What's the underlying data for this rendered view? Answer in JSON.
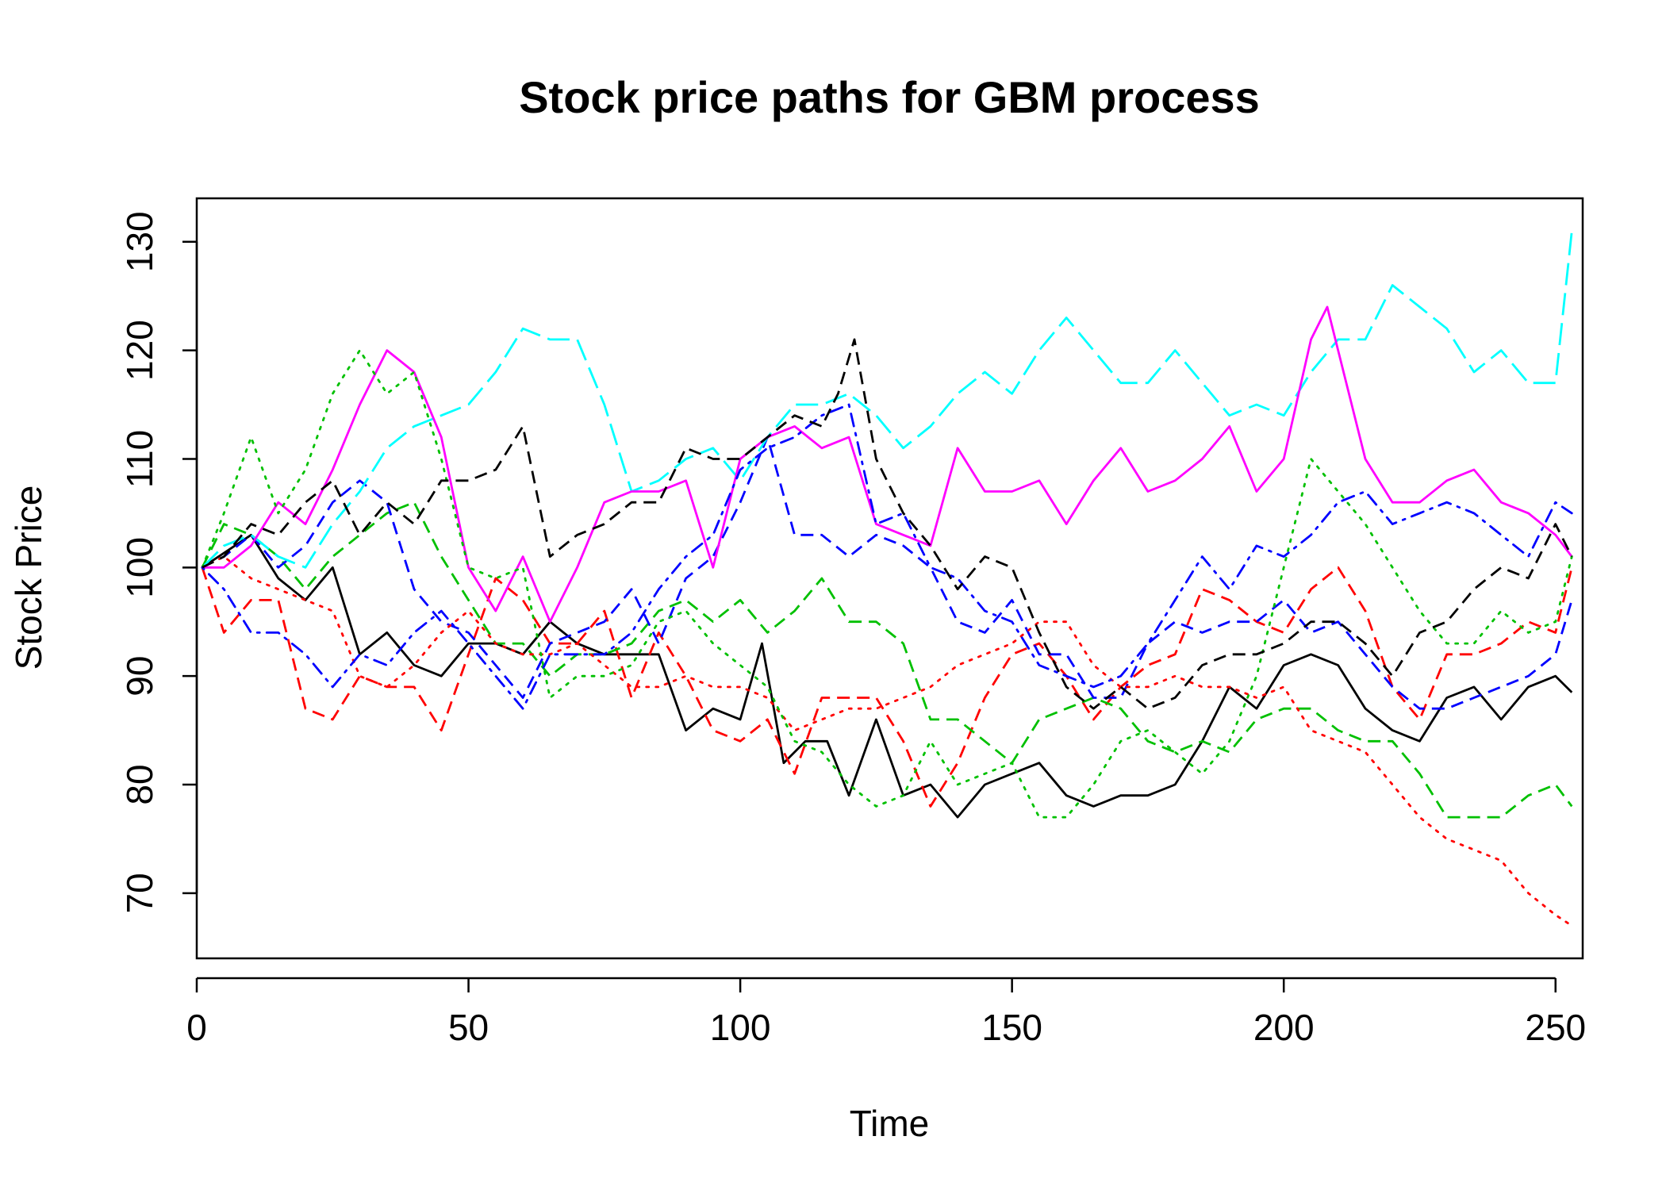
{
  "chart_data": {
    "type": "line",
    "title": "Stock price paths for GBM process",
    "xlabel": "Time",
    "ylabel": "Stock Price",
    "xlim": [
      0,
      255
    ],
    "ylim": [
      64,
      134
    ],
    "xticks": [
      0,
      50,
      100,
      150,
      200,
      250
    ],
    "yticks": [
      70,
      80,
      90,
      100,
      110,
      120,
      130
    ],
    "grid": false,
    "legend": "none",
    "series": [
      {
        "color": "#000000",
        "dash": "solid",
        "x": [
          1,
          10,
          15,
          20,
          25,
          30,
          35,
          40,
          45,
          50,
          55,
          60,
          65,
          70,
          75,
          80,
          85,
          90,
          95,
          100,
          104,
          108,
          112,
          116,
          120,
          125,
          130,
          135,
          140,
          145,
          150,
          155,
          160,
          165,
          170,
          175,
          180,
          185,
          190,
          195,
          200,
          205,
          210,
          215,
          220,
          225,
          230,
          235,
          240,
          245,
          250,
          253
        ],
        "values": [
          100,
          103,
          99,
          97,
          100,
          92,
          94,
          91,
          90,
          93,
          93,
          92,
          95,
          93,
          92,
          92,
          92,
          85,
          87,
          86,
          93,
          82,
          84,
          84,
          79,
          86,
          79,
          80,
          77,
          80,
          81,
          82,
          79,
          78,
          79,
          79,
          80,
          84,
          89,
          87,
          91,
          92,
          91,
          87,
          85,
          84,
          88,
          89,
          86,
          89,
          90,
          88.5
        ]
      },
      {
        "color": "#ff0000",
        "dash": "dashed",
        "x": [
          1,
          5,
          10,
          15,
          20,
          25,
          30,
          35,
          40,
          45,
          50,
          55,
          60,
          65,
          70,
          75,
          80,
          85,
          90,
          95,
          100,
          105,
          110,
          115,
          120,
          125,
          130,
          135,
          140,
          145,
          150,
          155,
          160,
          165,
          170,
          175,
          180,
          185,
          190,
          195,
          200,
          205,
          210,
          215,
          220,
          225,
          230,
          235,
          240,
          245,
          250,
          253
        ],
        "values": [
          100,
          94,
          97,
          97,
          87,
          86,
          90,
          89,
          89,
          85,
          92,
          99,
          97,
          93,
          93,
          96,
          88,
          94,
          90,
          85,
          84,
          86,
          81,
          88,
          88,
          88,
          84,
          78,
          82,
          88,
          92,
          93,
          90,
          86,
          89,
          91,
          92,
          98,
          97,
          95,
          94,
          98,
          100,
          96,
          89,
          86,
          92,
          92,
          93,
          95,
          94,
          100
        ]
      },
      {
        "color": "#00c000",
        "dash": "dashed",
        "x": [
          1,
          5,
          10,
          15,
          20,
          25,
          30,
          35,
          40,
          45,
          50,
          55,
          60,
          65,
          70,
          75,
          80,
          85,
          90,
          95,
          100,
          105,
          110,
          115,
          120,
          125,
          130,
          135,
          140,
          145,
          150,
          155,
          160,
          165,
          170,
          175,
          180,
          185,
          190,
          195,
          200,
          205,
          210,
          215,
          220,
          225,
          230,
          235,
          240,
          245,
          250,
          253
        ],
        "values": [
          100,
          104,
          103,
          101,
          98,
          101,
          103,
          105,
          106,
          101,
          97,
          93,
          93,
          90,
          92,
          92,
          93,
          96,
          97,
          95,
          97,
          94,
          96,
          99,
          95,
          95,
          93,
          86,
          86,
          84,
          82,
          86,
          87,
          88,
          87,
          84,
          83,
          84,
          83,
          86,
          87,
          87,
          85,
          84,
          84,
          81,
          77,
          77,
          77,
          79,
          80,
          78
        ]
      },
      {
        "color": "#0000ff",
        "dash": "dashed",
        "x": [
          1,
          5,
          10,
          15,
          20,
          25,
          30,
          35,
          40,
          45,
          50,
          55,
          60,
          65,
          70,
          75,
          80,
          85,
          90,
          95,
          100,
          105,
          110,
          115,
          120,
          125,
          130,
          135,
          140,
          145,
          150,
          155,
          160,
          165,
          170,
          175,
          180,
          185,
          190,
          195,
          200,
          205,
          210,
          215,
          220,
          225,
          230,
          235,
          240,
          245,
          250,
          253
        ],
        "values": [
          100,
          101,
          103,
          100,
          102,
          106,
          108,
          106,
          98,
          95,
          94,
          91,
          88,
          93,
          94,
          95,
          98,
          93,
          99,
          101,
          106,
          112,
          103,
          103,
          101,
          103,
          102,
          100,
          95,
          94,
          97,
          92,
          92,
          88,
          88,
          93,
          95,
          94,
          95,
          95,
          97,
          94,
          95,
          92,
          89,
          87,
          87,
          88,
          89,
          90,
          92,
          97
        ]
      },
      {
        "color": "#00ffff",
        "dash": "longdash",
        "x": [
          1,
          5,
          10,
          15,
          20,
          25,
          30,
          35,
          40,
          45,
          50,
          55,
          60,
          65,
          70,
          75,
          80,
          85,
          90,
          95,
          100,
          105,
          110,
          115,
          120,
          125,
          130,
          135,
          140,
          145,
          150,
          155,
          160,
          165,
          170,
          175,
          180,
          185,
          190,
          195,
          200,
          205,
          210,
          215,
          220,
          225,
          230,
          235,
          240,
          245,
          250,
          253
        ],
        "values": [
          100,
          102,
          103,
          101,
          100,
          104,
          107,
          111,
          113,
          114,
          115,
          118,
          122,
          121,
          121,
          115,
          107,
          108,
          110,
          111,
          108,
          112,
          115,
          115,
          116,
          114,
          111,
          113,
          116,
          118,
          116,
          120,
          123,
          120,
          117,
          117,
          120,
          117,
          114,
          115,
          114,
          118,
          121,
          121,
          126,
          124,
          122,
          118,
          120,
          117,
          117,
          131
        ]
      },
      {
        "color": "#ff00ff",
        "dash": "solid",
        "x": [
          1,
          5,
          10,
          15,
          20,
          25,
          30,
          35,
          40,
          45,
          50,
          55,
          60,
          65,
          70,
          75,
          80,
          85,
          90,
          95,
          100,
          105,
          110,
          115,
          120,
          125,
          130,
          135,
          140,
          145,
          150,
          155,
          160,
          165,
          170,
          175,
          180,
          185,
          190,
          195,
          200,
          205,
          208,
          210,
          215,
          220,
          225,
          230,
          235,
          240,
          245,
          250,
          253
        ],
        "values": [
          100,
          100,
          102,
          106,
          104,
          109,
          115,
          120,
          118,
          112,
          100,
          96,
          101,
          95,
          100,
          106,
          107,
          107,
          108,
          100,
          110,
          112,
          113,
          111,
          112,
          104,
          103,
          102,
          111,
          107,
          107,
          108,
          104,
          108,
          111,
          107,
          108,
          110,
          113,
          107,
          110,
          121,
          124,
          120,
          110,
          106,
          106,
          108,
          109,
          106,
          105,
          103,
          101
        ]
      },
      {
        "color": "#ff0000",
        "dash": "dotted",
        "x": [
          1,
          5,
          10,
          15,
          20,
          25,
          30,
          35,
          40,
          45,
          50,
          55,
          60,
          65,
          70,
          75,
          80,
          85,
          90,
          95,
          100,
          105,
          110,
          115,
          120,
          125,
          130,
          135,
          140,
          145,
          150,
          155,
          160,
          165,
          170,
          175,
          180,
          185,
          190,
          195,
          200,
          205,
          210,
          215,
          220,
          225,
          230,
          235,
          240,
          245,
          250,
          253
        ],
        "values": [
          100,
          101,
          99,
          98,
          97,
          96,
          90,
          89,
          91,
          94,
          96,
          93,
          92,
          92,
          93,
          91,
          89,
          89,
          90,
          89,
          89,
          88,
          85,
          86,
          87,
          87,
          88,
          89,
          91,
          92,
          93,
          95,
          95,
          91,
          89,
          89,
          90,
          89,
          89,
          88,
          89,
          85,
          84,
          83,
          80,
          77,
          75,
          74,
          73,
          70,
          68,
          67
        ]
      },
      {
        "color": "#00c000",
        "dash": "dotted",
        "x": [
          1,
          5,
          10,
          15,
          20,
          25,
          30,
          35,
          40,
          45,
          50,
          55,
          60,
          65,
          70,
          75,
          80,
          85,
          90,
          95,
          100,
          105,
          110,
          115,
          120,
          125,
          130,
          135,
          140,
          145,
          150,
          155,
          160,
          165,
          170,
          175,
          180,
          185,
          190,
          195,
          200,
          205,
          210,
          215,
          220,
          225,
          230,
          235,
          240,
          245,
          250,
          253
        ],
        "values": [
          100,
          105,
          112,
          105,
          109,
          116,
          120,
          116,
          118,
          110,
          100,
          99,
          100,
          88,
          90,
          90,
          91,
          95,
          96,
          93,
          91,
          89,
          84,
          83,
          80,
          78,
          79,
          84,
          80,
          81,
          82,
          77,
          77,
          80,
          84,
          85,
          83,
          81,
          84,
          90,
          100,
          110,
          107,
          104,
          100,
          96,
          93,
          93,
          96,
          94,
          95,
          101
        ]
      },
      {
        "color": "#0000ff",
        "dash": "dotdash",
        "x": [
          1,
          5,
          10,
          15,
          20,
          25,
          30,
          35,
          40,
          45,
          50,
          55,
          60,
          65,
          70,
          75,
          80,
          85,
          90,
          95,
          100,
          105,
          110,
          115,
          120,
          125,
          130,
          135,
          140,
          145,
          150,
          155,
          160,
          165,
          170,
          175,
          180,
          185,
          190,
          195,
          200,
          205,
          210,
          215,
          220,
          225,
          230,
          235,
          240,
          245,
          250,
          253
        ],
        "values": [
          100,
          98,
          94,
          94,
          92,
          89,
          92,
          91,
          94,
          96,
          93,
          90,
          87,
          92,
          92,
          92,
          94,
          98,
          101,
          103,
          109,
          111,
          112,
          114,
          115,
          104,
          105,
          100,
          99,
          96,
          95,
          91,
          90,
          89,
          90,
          93,
          97,
          101,
          98,
          102,
          101,
          103,
          106,
          107,
          104,
          105,
          106,
          105,
          103,
          101,
          106,
          105
        ]
      },
      {
        "color": "#000000",
        "dash": "dashed",
        "x": [
          1,
          5,
          10,
          15,
          20,
          25,
          30,
          35,
          40,
          45,
          50,
          55,
          60,
          65,
          70,
          75,
          80,
          85,
          90,
          95,
          100,
          105,
          110,
          115,
          118,
          121,
          125,
          130,
          135,
          140,
          145,
          150,
          155,
          160,
          165,
          170,
          175,
          180,
          185,
          190,
          195,
          200,
          205,
          210,
          215,
          220,
          225,
          230,
          235,
          240,
          245,
          250,
          253
        ],
        "values": [
          100,
          101,
          104,
          103,
          106,
          108,
          103,
          106,
          104,
          108,
          108,
          109,
          113,
          101,
          103,
          104,
          106,
          106,
          111,
          110,
          110,
          112,
          114,
          113,
          116,
          121,
          110,
          105,
          102,
          98,
          101,
          100,
          94,
          89,
          87,
          89,
          87,
          88,
          91,
          92,
          92,
          93,
          95,
          95,
          93,
          90,
          94,
          95,
          98,
          100,
          99,
          104,
          101
        ]
      }
    ]
  }
}
